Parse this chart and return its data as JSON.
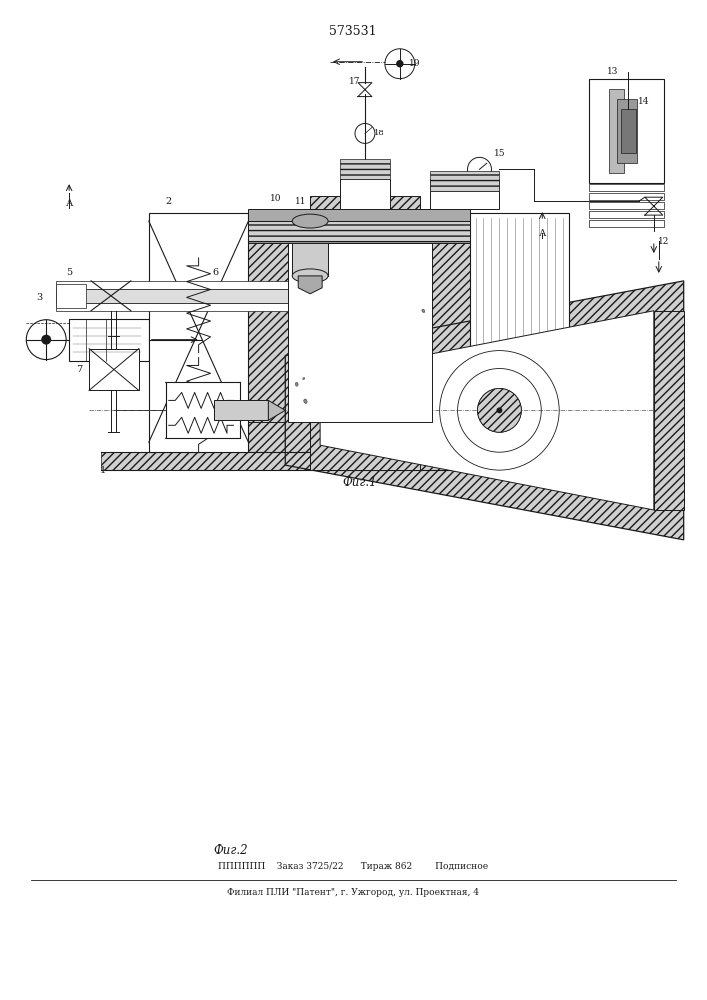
{
  "title": "573531",
  "fig1_caption": "Фиг.1",
  "fig2_caption": "Фиг.2",
  "footer_line1": "ПППППП    Заказ 3725/22      Тираж 862        Подписное",
  "footer_line2": "Филиал ПЛИ \"Патент\", г. Ужгород, ул. Проектная, 4",
  "line_color": "#1a1a1a",
  "hatch_fc": "#d0d0d0",
  "white": "#ffffff",
  "page_width": 7.07,
  "page_height": 10.0
}
